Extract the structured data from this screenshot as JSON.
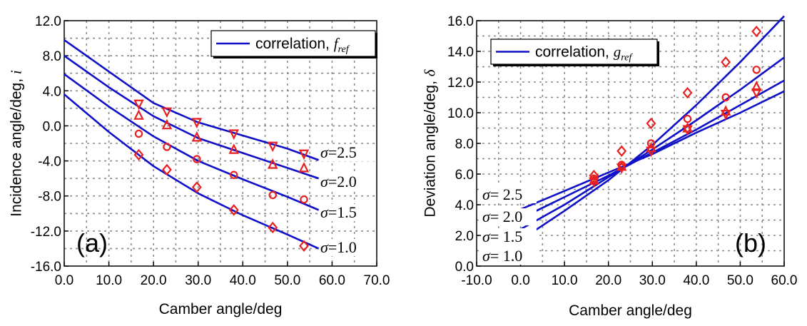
{
  "colors": {
    "curve": "#1010c8",
    "marker": "#e82020",
    "grid": "#8a8a8a",
    "axis": "#000000"
  },
  "chart_data": [
    {
      "panel": "(a)",
      "type": "line",
      "xlabel": "Camber angle/deg",
      "ylabel": "Incidence angle/deg, ",
      "ylabel_symbol": "i",
      "xlim": [
        0,
        70
      ],
      "ylim": [
        -16,
        12
      ],
      "xticks": [
        0,
        10,
        20,
        30,
        40,
        50,
        60,
        70
      ],
      "yticks": [
        -16,
        -12,
        -8,
        -4,
        0,
        4,
        8,
        12
      ],
      "xtick_labels": [
        "0.0",
        "10.0",
        "20.0",
        "30.0",
        "40.0",
        "50.0",
        "60.0",
        "70.0"
      ],
      "ytick_labels": [
        "-16.0",
        "-12.0",
        "-8.0",
        "-4.0",
        "0.0",
        "4.0",
        "8.0",
        "12.0"
      ],
      "grid": true,
      "legend": {
        "label": "correlation, ",
        "symbol": "f",
        "subscript": "ref",
        "placement": "top-right"
      },
      "series": [
        {
          "name": "σ=2.5",
          "label_sym": "σ",
          "label_val": "=2.5",
          "marker": "triangle-down",
          "curve": {
            "x": [
              0,
              10,
              20,
              30,
              40,
              50,
              57
            ],
            "y": [
              9.8,
              6.2,
              2.6,
              0.4,
              -1.1,
              -2.6,
              -3.9
            ]
          },
          "points": {
            "x": [
              16.7,
              23.0,
              29.7,
              38.0,
              46.7,
              53.7
            ],
            "y": [
              2.5,
              1.6,
              0.4,
              -0.9,
              -2.3,
              -3.2
            ]
          }
        },
        {
          "name": "σ=2.0",
          "label_sym": "σ",
          "label_val": "=2.0",
          "marker": "triangle-up",
          "curve": {
            "x": [
              0,
              10,
              20,
              30,
              40,
              50,
              57
            ],
            "y": [
              8.0,
              4.4,
              1.1,
              -1.4,
              -3.1,
              -4.8,
              -6.0
            ]
          },
          "points": {
            "x": [
              16.7,
              23.0,
              29.7,
              38.0,
              46.7,
              53.7
            ],
            "y": [
              1.2,
              0.1,
              -1.3,
              -2.7,
              -4.4,
              -4.8
            ]
          }
        },
        {
          "name": "σ=1.5",
          "label_sym": "σ",
          "label_val": "=1.5",
          "marker": "circle",
          "curve": {
            "x": [
              0,
              10,
              20,
              30,
              40,
              50,
              57
            ],
            "y": [
              5.9,
              2.2,
              -1.2,
              -4.0,
              -6.1,
              -8.1,
              -9.6
            ]
          },
          "points": {
            "x": [
              16.7,
              23.0,
              29.7,
              38.0,
              46.7,
              53.7
            ],
            "y": [
              -0.9,
              -2.4,
              -3.8,
              -5.6,
              -7.9,
              -8.4
            ]
          }
        },
        {
          "name": "σ=1.0",
          "label_sym": "σ",
          "label_val": "=1.0",
          "marker": "diamond",
          "curve": {
            "x": [
              0,
              10,
              20,
              30,
              40,
              50,
              57
            ],
            "y": [
              3.6,
              -0.7,
              -4.6,
              -7.7,
              -10.2,
              -12.4,
              -14.0
            ]
          },
          "points": {
            "x": [
              16.7,
              23.0,
              29.7,
              38.0,
              46.7,
              53.7
            ],
            "y": [
              -3.3,
              -5.0,
              -7.0,
              -9.6,
              -11.6,
              -13.7
            ]
          }
        }
      ]
    },
    {
      "panel": "(b)",
      "type": "line",
      "xlabel": "Camber angle/deg",
      "ylabel": "Deviation angle/deg, ",
      "ylabel_symbol": "δ",
      "xlim": [
        -10,
        60
      ],
      "ylim": [
        0,
        16
      ],
      "xticks": [
        -10,
        0,
        10,
        20,
        30,
        40,
        50,
        60
      ],
      "yticks": [
        0,
        2,
        4,
        6,
        8,
        10,
        12,
        14,
        16
      ],
      "xtick_labels": [
        "-10.0",
        "0.0",
        "10.0",
        "20.0",
        "30.0",
        "40.0",
        "50.0",
        "60.0"
      ],
      "ytick_labels": [
        "0.0",
        "2.0",
        "4.0",
        "6.0",
        "8.0",
        "10.0",
        "12.0",
        "14.0",
        "16.0"
      ],
      "grid": true,
      "legend": {
        "label": "correlation, ",
        "symbol": "g",
        "subscript": "ref",
        "placement": "top-left"
      },
      "series": [
        {
          "name": "σ= 2.5",
          "label_sym": "σ",
          "label_val": "= 2.5",
          "marker": "triangle-down",
          "curve": {
            "x": [
              0,
              10,
              20,
              30,
              40,
              50,
              60
            ],
            "y": [
              3.7,
              4.9,
              6.1,
              7.3,
              8.7,
              10.0,
              11.4
            ]
          },
          "points": {
            "x": [
              16.7,
              23.0,
              29.7,
              38.0,
              46.7,
              53.7
            ],
            "y": [
              5.5,
              6.4,
              7.5,
              8.9,
              9.9,
              11.3
            ]
          }
        },
        {
          "name": "σ= 2.0",
          "label_sym": "σ",
          "label_val": "= 2.0",
          "marker": "triangle-up",
          "curve": {
            "x": [
              0,
              10,
              20,
              30,
              40,
              50,
              60
            ],
            "y": [
              3.1,
              4.5,
              5.9,
              7.4,
              8.9,
              10.5,
              12.1
            ]
          },
          "points": {
            "x": [
              16.7,
              23.0,
              29.7,
              38.0,
              46.7,
              53.7
            ],
            "y": [
              5.6,
              6.5,
              7.7,
              9.0,
              10.1,
              11.7
            ]
          }
        },
        {
          "name": "σ= 1.5",
          "label_sym": "σ",
          "label_val": "= 1.5",
          "marker": "circle",
          "curve": {
            "x": [
              0,
              10,
              20,
              30,
              40,
              50,
              60
            ],
            "y": [
              2.4,
              4.0,
              5.8,
              7.6,
              9.5,
              11.5,
              13.6
            ]
          },
          "points": {
            "x": [
              16.7,
              23.0,
              29.7,
              38.0,
              46.7,
              53.7
            ],
            "y": [
              5.7,
              6.6,
              8.0,
              9.6,
              11.0,
              12.8
            ]
          }
        },
        {
          "name": "σ= 1.0",
          "label_sym": "σ",
          "label_val": "= 1.0",
          "marker": "diamond",
          "curve": {
            "x": [
              0,
              10,
              20,
              30,
              40,
              50,
              60
            ],
            "y": [
              1.7,
              3.6,
              5.6,
              7.9,
              10.5,
              13.3,
              16.3
            ]
          },
          "points": {
            "x": [
              16.7,
              23.0,
              29.7,
              38.0,
              46.7,
              53.7
            ],
            "y": [
              5.9,
              7.5,
              9.3,
              11.3,
              13.3,
              15.3
            ]
          }
        }
      ]
    }
  ]
}
